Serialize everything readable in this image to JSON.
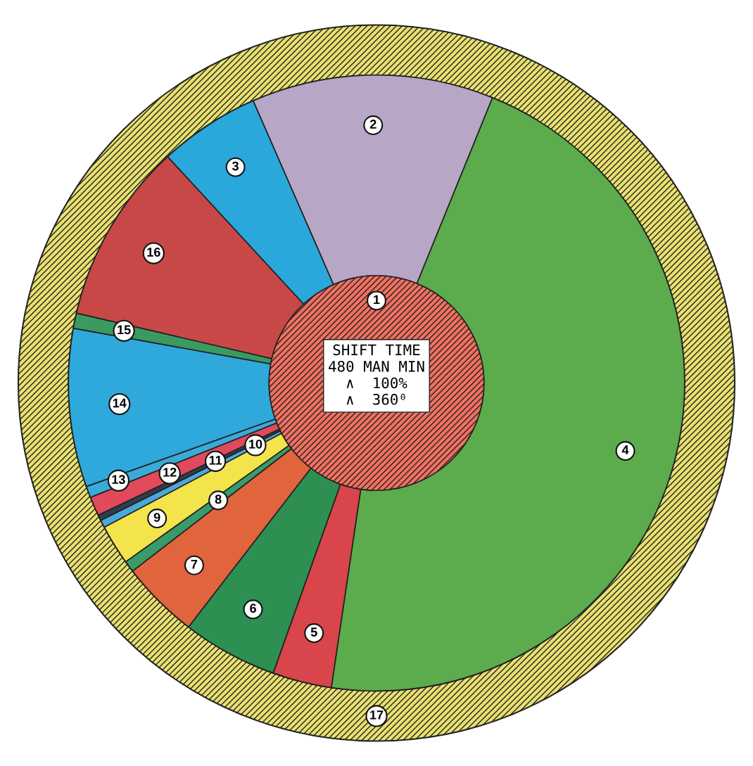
{
  "chart_data": {
    "type": "donut",
    "categories": [
      "2",
      "4",
      "5",
      "6",
      "7",
      "8",
      "9",
      "10",
      "11",
      "12",
      "13",
      "14",
      "15",
      "16",
      "3"
    ],
    "values": [
      12.7,
      46.2,
      3.1,
      5.0,
      4.1,
      0.6,
      2.1,
      0.4,
      0.3,
      1.0,
      0.6,
      8.3,
      0.8,
      9.5,
      5.3
    ],
    "colors": [
      "#b8a6c6",
      "#5cab4c",
      "#d8454a",
      "#2e8f52",
      "#e0643c",
      "#3a9a6a",
      "#f2e44a",
      "#4aa8d8",
      "#2e3e50",
      "#e04a5a",
      "#3aaad8",
      "#2fa8dc",
      "#3a9a60",
      "#c84848",
      "#2aa8dc"
    ],
    "annotations": [
      "1",
      "17",
      "SHIFT TIME\n480 MAN MIN\n∧  100%\n∧  360⁰"
    ],
    "legend": false
  }
}
